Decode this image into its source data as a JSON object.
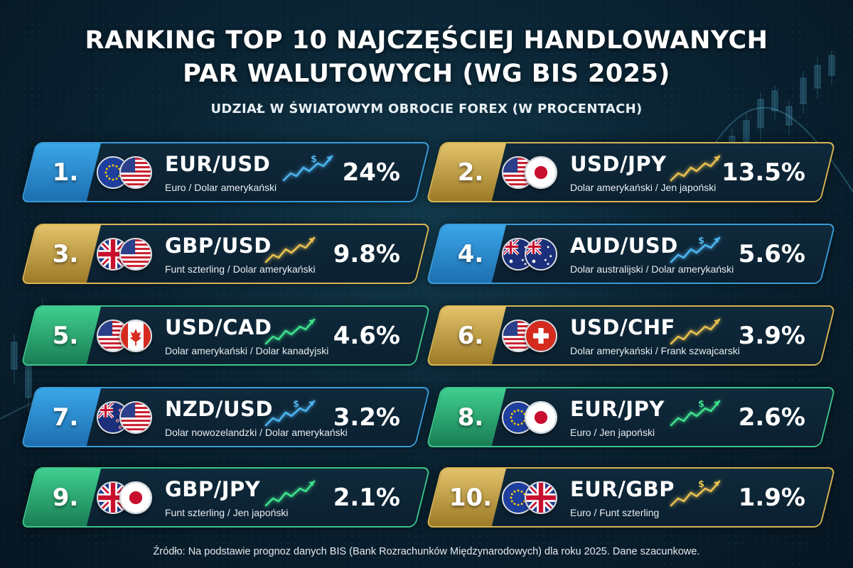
{
  "title_line1": "RANKING TOP 10 NAJCZĘŚCIEJ HANDLOWANYCH",
  "title_line2": "PAR WALUTOWYCH (WG BIS 2025)",
  "subtitle": "UDZIAŁ W ŚWIATOWYM OBROCIE FOREX (W PROCENTACH)",
  "source": "Źródło: Na podstawie prognoz danych BIS (Bank Rozrachunków Międzynarodowych) dla roku 2025. Dane szacunkowe.",
  "colors": {
    "blue": "#2f8fd0",
    "gold": "#d4ad4a",
    "green": "#33b97f",
    "spark_blue": "#4db4f0",
    "spark_gold": "#e8c050",
    "spark_green": "#3ee08c"
  },
  "pairs": [
    {
      "rank": "1.",
      "pair": "EUR/USD",
      "desc": "Euro / Dolar amerykański",
      "pct": "24%",
      "share": 24,
      "theme": "blue",
      "flags": [
        "eu-flag-icon",
        "us-flag-icon"
      ],
      "spark": "dollar-trend-icon"
    },
    {
      "rank": "2.",
      "pair": "USD/JPY",
      "desc": "Dolar amerykański / Jen japoński",
      "pct": "13.5%",
      "share": 13.5,
      "theme": "gold",
      "flags": [
        "us-flag-icon",
        "jp-flag-icon"
      ],
      "spark": "trend-icon"
    },
    {
      "rank": "3.",
      "pair": "GBP/USD",
      "desc": "Funt szterling / Dolar amerykański",
      "pct": "9.8%",
      "share": 9.8,
      "theme": "gold",
      "flags": [
        "uk-flag-icon",
        "us-flag-icon"
      ],
      "spark": "trend-icon"
    },
    {
      "rank": "4.",
      "pair": "AUD/USD",
      "desc": "Dolar australijski / Dolar amerykański",
      "pct": "5.6%",
      "share": 5.6,
      "theme": "blue",
      "flags": [
        "au-flag-icon",
        "au-flag-icon"
      ],
      "spark": "dollar-trend-icon"
    },
    {
      "rank": "5.",
      "pair": "USD/CAD",
      "desc": "Dolar amerykański / Dolar kanadyjski",
      "pct": "4.6%",
      "share": 4.6,
      "theme": "green",
      "flags": [
        "us-flag-icon",
        "ca-flag-icon"
      ],
      "spark": "trend-icon"
    },
    {
      "rank": "6.",
      "pair": "USD/CHF",
      "desc": "Dolar amerykański / Frank szwajcarski",
      "pct": "3.9%",
      "share": 3.9,
      "theme": "gold",
      "flags": [
        "us-flag-icon",
        "ch-flag-icon"
      ],
      "spark": "trend-icon"
    },
    {
      "rank": "7.",
      "pair": "NZD/USD",
      "desc": "Dolar nowozelandzki / Dolar amerykański",
      "pct": "3.2%",
      "share": 3.2,
      "theme": "blue",
      "flags": [
        "nz-flag-icon",
        "us-flag-icon"
      ],
      "spark": "dollar-trend-icon"
    },
    {
      "rank": "8.",
      "pair": "EUR/JPY",
      "desc": "Euro / Jen japoński",
      "pct": "2.6%",
      "share": 2.6,
      "theme": "green",
      "flags": [
        "eu-flag-icon",
        "jp-flag-icon"
      ],
      "spark": "dollar-trend-icon"
    },
    {
      "rank": "9.",
      "pair": "GBP/JPY",
      "desc": "Funt szterling / Jen japoński",
      "pct": "2.1%",
      "share": 2.1,
      "theme": "green",
      "flags": [
        "uk-flag-icon",
        "jp-flag-icon"
      ],
      "spark": "trend-icon"
    },
    {
      "rank": "10.",
      "pair": "EUR/GBP",
      "desc": "Euro / Funt szterling",
      "pct": "1.9%",
      "share": 1.9,
      "theme": "gold",
      "flags": [
        "eu-flag-icon",
        "uk-flag-icon"
      ],
      "spark": "dollar-trend-icon"
    }
  ]
}
